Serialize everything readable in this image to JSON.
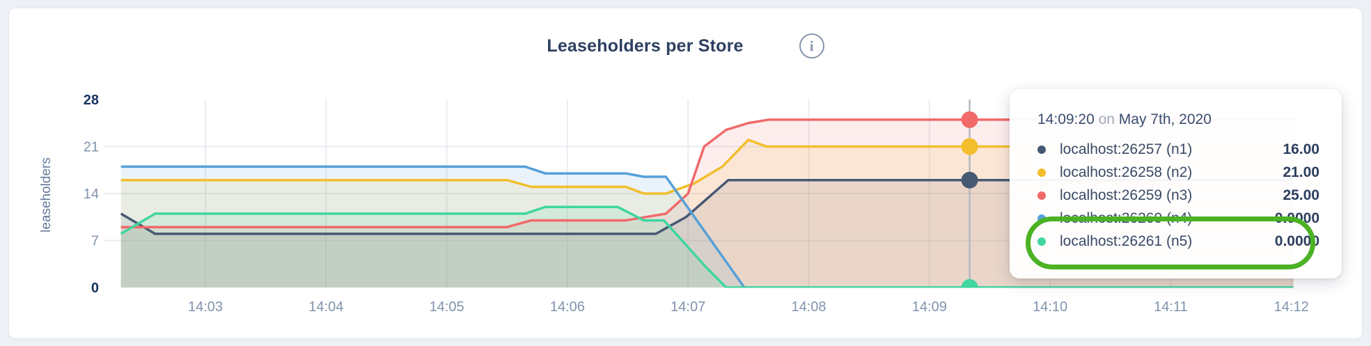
{
  "card": {
    "title": "Leaseholders per Store",
    "info_icon": "i"
  },
  "chart_data": {
    "type": "area",
    "title": "Leaseholders per Store",
    "ylabel": "leaseholders",
    "xlabel": "",
    "ylim": [
      0,
      28
    ],
    "yticks": [
      0,
      7,
      14,
      21,
      28
    ],
    "grid": true,
    "legend_position": "tooltip",
    "x_unit": "seconds after 14:00",
    "x_domain": [
      138,
      721
    ],
    "xticks": [
      {
        "t": 180,
        "label": "14:03"
      },
      {
        "t": 240,
        "label": "14:04"
      },
      {
        "t": 300,
        "label": "14:05"
      },
      {
        "t": 360,
        "label": "14:06"
      },
      {
        "t": 420,
        "label": "14:07"
      },
      {
        "t": 480,
        "label": "14:08"
      },
      {
        "t": 540,
        "label": "14:09"
      },
      {
        "t": 600,
        "label": "14:10"
      },
      {
        "t": 660,
        "label": "14:11"
      },
      {
        "t": 720,
        "label": "14:12"
      }
    ],
    "series": [
      {
        "name": "localhost:26257 (n1)",
        "color": "#475872",
        "points": [
          [
            138,
            11
          ],
          [
            155,
            8
          ],
          [
            404,
            8
          ],
          [
            410,
            9
          ],
          [
            419,
            10.5
          ],
          [
            440,
            16
          ],
          [
            721,
            16
          ]
        ]
      },
      {
        "name": "localhost:26258 (n2)",
        "color": "#F2BE2C",
        "points": [
          [
            138,
            16
          ],
          [
            330,
            16
          ],
          [
            342,
            15
          ],
          [
            389,
            15
          ],
          [
            398,
            14
          ],
          [
            409,
            14
          ],
          [
            423,
            15.5
          ],
          [
            437,
            18
          ],
          [
            450,
            22
          ],
          [
            459,
            21
          ],
          [
            721,
            21
          ]
        ]
      },
      {
        "name": "localhost:26259 (n3)",
        "color": "#F16969",
        "points": [
          [
            138,
            9
          ],
          [
            330,
            9
          ],
          [
            342,
            10
          ],
          [
            389,
            10
          ],
          [
            409,
            11
          ],
          [
            420,
            14
          ],
          [
            428,
            21
          ],
          [
            439,
            23.5
          ],
          [
            450,
            24.5
          ],
          [
            460,
            25
          ],
          [
            721,
            25
          ]
        ]
      },
      {
        "name": "localhost:26260 (n4)",
        "color": "#56A0D8",
        "points": [
          [
            138,
            18
          ],
          [
            339,
            18
          ],
          [
            349,
            17
          ],
          [
            389,
            17
          ],
          [
            398,
            16.5
          ],
          [
            409,
            16.5
          ],
          [
            448,
            0
          ],
          [
            721,
            0
          ]
        ]
      },
      {
        "name": "localhost:26261 (n5)",
        "color": "#3FD6A0",
        "points": [
          [
            138,
            8
          ],
          [
            155,
            11
          ],
          [
            339,
            11
          ],
          [
            349,
            12
          ],
          [
            385,
            12
          ],
          [
            398,
            10
          ],
          [
            408,
            10
          ],
          [
            429,
            3
          ],
          [
            439,
            0
          ],
          [
            721,
            0
          ]
        ]
      }
    ],
    "hover": {
      "time_seconds": 560,
      "time_label": "14:09:20",
      "values": [
        16,
        21,
        25,
        0,
        0
      ]
    }
  },
  "tooltip": {
    "time": "14:09:20",
    "separator": "on",
    "date": "May 7th, 2020",
    "rows": [
      {
        "label": "localhost:26257 (n1)",
        "value": "16.00"
      },
      {
        "label": "localhost:26258 (n2)",
        "value": "21.00"
      },
      {
        "label": "localhost:26259 (n3)",
        "value": "25.00"
      },
      {
        "label": "localhost:26260 (n4)",
        "value": "0.0000"
      },
      {
        "label": "localhost:26261 (n5)",
        "value": "0.0000"
      }
    ],
    "annotation_color": "#4bb224"
  }
}
